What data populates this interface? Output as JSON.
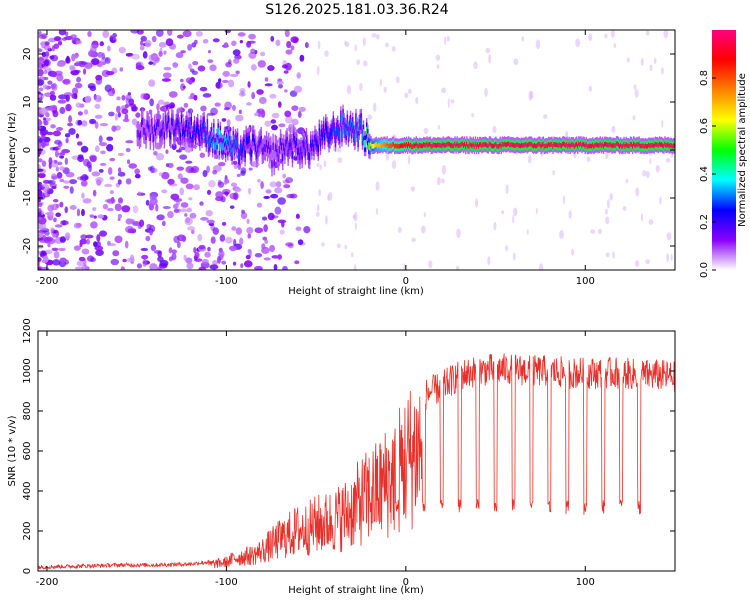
{
  "figure": {
    "title": "S126.2025.181.03.36.R24"
  },
  "chart_data": [
    {
      "type": "heatmap",
      "xlabel": "Height of straight line (km)",
      "ylabel": "Frequency (Hz)",
      "xlim": [
        -205,
        150
      ],
      "ylim": [
        -25,
        25
      ],
      "xticks": [
        "-200",
        "-100",
        "0",
        "100"
      ],
      "yticks": [
        "-20",
        "-10",
        "0",
        "10",
        "20"
      ],
      "grid": false,
      "colorbar": {
        "label": "Normalized spectral amplitude",
        "range": [
          0,
          1
        ],
        "ticks": [
          "0.0",
          "0.2",
          "0.4",
          "0.6",
          "0.8"
        ],
        "colors": [
          "#ffffff",
          "#8a00ff",
          "#0000ff",
          "#00ffff",
          "#00ff00",
          "#ffff00",
          "#ff8000",
          "#ff0000",
          "#ff0080"
        ]
      },
      "ridge": {
        "x": [
          -150,
          -130,
          -115,
          -105,
          -95,
          -85,
          -75,
          -65,
          -55,
          -45,
          -35,
          -25,
          -20,
          -10,
          0,
          10,
          50,
          100,
          150
        ],
        "frequency": [
          4,
          5,
          4,
          2,
          0,
          1,
          -1,
          1,
          0,
          3,
          5,
          4,
          1,
          1,
          1,
          1,
          1,
          1,
          1
        ],
        "amplitude": [
          0.15,
          0.2,
          0.25,
          0.35,
          0.3,
          0.2,
          0.15,
          0.2,
          0.2,
          0.25,
          0.3,
          0.3,
          0.6,
          0.8,
          0.9,
          0.95,
          0.95,
          0.95,
          0.95
        ]
      }
    },
    {
      "type": "line",
      "xlabel": "Height of straight line (km)",
      "ylabel": "SNR (10 * v/v)",
      "xlim": [
        -205,
        150
      ],
      "ylim": [
        0,
        1200
      ],
      "xticks": [
        "-200",
        "-100",
        "0",
        "100"
      ],
      "yticks": [
        "0",
        "200",
        "400",
        "600",
        "800",
        "1000",
        "1200"
      ],
      "grid": false,
      "series": [
        {
          "color": "#e8302a",
          "x": [
            -205,
            -180,
            -160,
            -140,
            -120,
            -110,
            -100,
            -95,
            -90,
            -85,
            -80,
            -75,
            -70,
            -65,
            -60,
            -55,
            -50,
            -45,
            -40,
            -35,
            -30,
            -25,
            -20,
            -15,
            -10,
            -5,
            0,
            5,
            10,
            15,
            20,
            25,
            30,
            40,
            50,
            60,
            70,
            80,
            90,
            100,
            110,
            120,
            130,
            140,
            150
          ],
          "values": [
            20,
            25,
            30,
            30,
            35,
            45,
            60,
            90,
            100,
            110,
            140,
            180,
            220,
            250,
            280,
            290,
            320,
            330,
            350,
            380,
            420,
            480,
            520,
            560,
            620,
            680,
            760,
            820,
            880,
            900,
            920,
            950,
            980,
            1000,
            1010,
            1010,
            1000,
            1000,
            990,
            990,
            990,
            990,
            980,
            980,
            970
          ],
          "dropouts": [
            -5,
            10,
            20,
            30,
            40,
            50,
            60,
            70,
            80,
            90,
            100,
            110,
            120,
            130
          ],
          "dropout_level": 320
        }
      ]
    }
  ]
}
